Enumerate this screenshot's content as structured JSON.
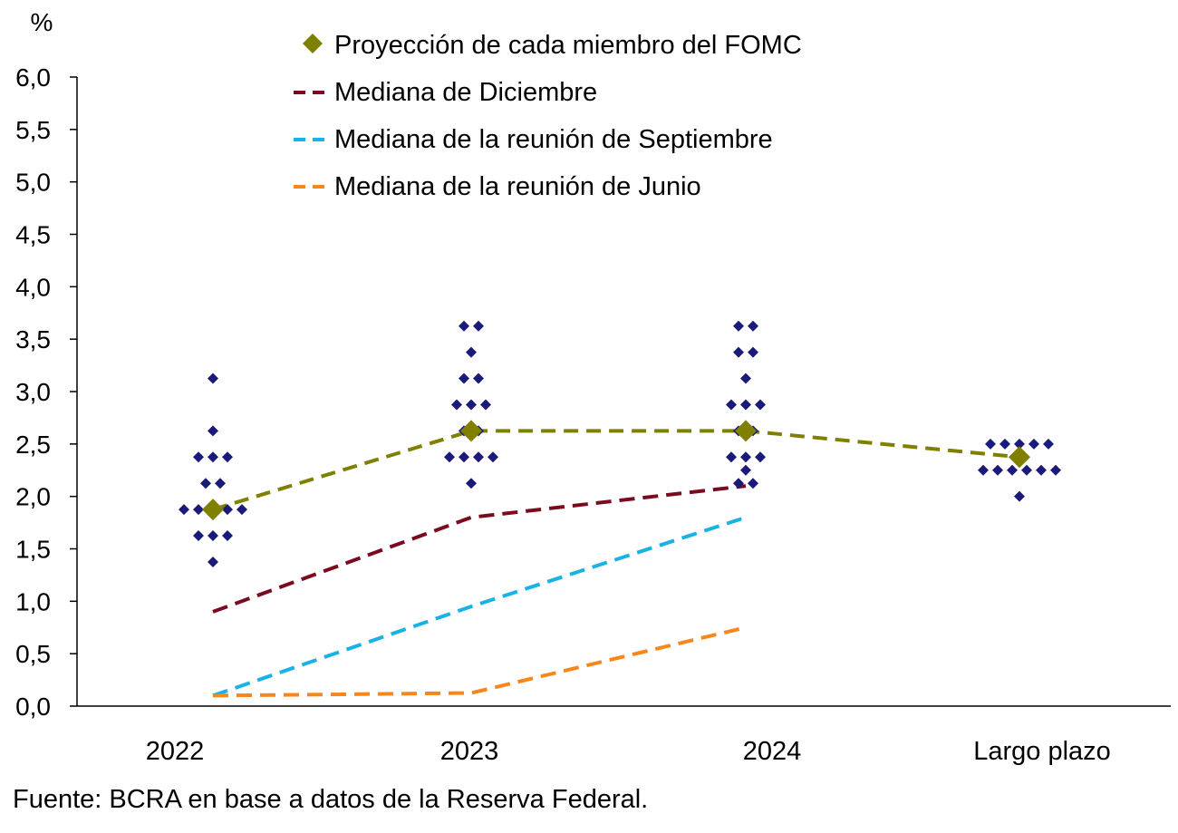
{
  "chart_data": {
    "type": "scatter",
    "title": "",
    "ylabel": "%",
    "xlabel": "",
    "ylim": [
      0,
      6
    ],
    "yticks": [
      "0,0",
      "0,5",
      "1,0",
      "1,5",
      "2,0",
      "2,5",
      "3,0",
      "3,5",
      "4,0",
      "4,5",
      "5,0",
      "5,5",
      "6,0"
    ],
    "categories": [
      "2022",
      "2023",
      "2024",
      "Largo plazo"
    ],
    "legend_position": "top-center",
    "grid": false,
    "legend": [
      {
        "label": "Proyección de cada miembro del FOMC",
        "marker": "diamond",
        "color": "#7f7f00"
      },
      {
        "label": "Mediana de Diciembre",
        "marker": "dash",
        "color": "#7b0a1e"
      },
      {
        "label": "Mediana de la reunión de Septiembre",
        "marker": "dash",
        "color": "#19b2e6"
      },
      {
        "label": "Mediana de la reunión de Junio",
        "marker": "dash",
        "color": "#f7861b"
      }
    ],
    "dots": {
      "color": "#1a1a78",
      "groups": [
        {
          "category": "2022",
          "points": [
            [
              3.125,
              1
            ],
            [
              2.625,
              1
            ],
            [
              2.375,
              3
            ],
            [
              2.125,
              2
            ],
            [
              1.875,
              5
            ],
            [
              1.625,
              3
            ],
            [
              1.375,
              1
            ]
          ]
        },
        {
          "category": "2023",
          "points": [
            [
              3.625,
              2
            ],
            [
              3.375,
              1
            ],
            [
              3.125,
              2
            ],
            [
              2.875,
              3
            ],
            [
              2.625,
              2
            ],
            [
              2.375,
              4
            ],
            [
              2.125,
              1
            ]
          ]
        },
        {
          "category": "2024",
          "points": [
            [
              3.625,
              2
            ],
            [
              3.375,
              2
            ],
            [
              3.125,
              1
            ],
            [
              2.875,
              3
            ],
            [
              2.625,
              2
            ],
            [
              2.375,
              3
            ],
            [
              2.25,
              1
            ],
            [
              2.125,
              2
            ]
          ]
        },
        {
          "category": "Largo plazo",
          "points": [
            [
              2.5,
              5
            ],
            [
              2.25,
              6
            ],
            [
              2.0,
              1
            ]
          ]
        }
      ]
    },
    "series": [
      {
        "name": "Proyección de cada miembro del FOMC",
        "style": "dashed-with-diamonds",
        "color": "#7f7f00",
        "categories": [
          "2022",
          "2023",
          "2024",
          "Largo plazo"
        ],
        "values": [
          1.875,
          2.625,
          2.625,
          2.375
        ]
      },
      {
        "name": "Mediana de Diciembre",
        "style": "dashed",
        "color": "#7b0a1e",
        "categories": [
          "2022",
          "2023",
          "2024"
        ],
        "values": [
          0.9,
          1.8,
          2.1
        ]
      },
      {
        "name": "Mediana de la reunión de Septiembre",
        "style": "dashed",
        "color": "#19b2e6",
        "categories": [
          "2022",
          "2023",
          "2024"
        ],
        "values": [
          0.1,
          0.95,
          1.8
        ]
      },
      {
        "name": "Mediana de la reunión de Junio",
        "style": "dashed",
        "color": "#f7861b",
        "categories": [
          "2022",
          "2023",
          "2024"
        ],
        "values": [
          0.1,
          0.125,
          0.75
        ]
      }
    ]
  },
  "footer": {
    "source": "Fuente: BCRA en base a datos de la Reserva Federal."
  }
}
